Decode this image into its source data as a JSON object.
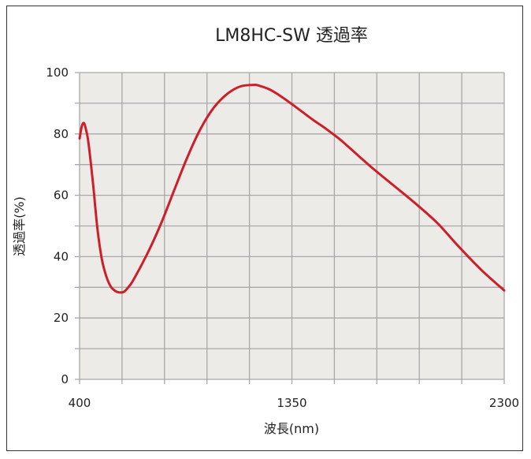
{
  "chart_data": {
    "type": "line",
    "title": "LM8HC-SW 透過率",
    "xlabel": "波長(nm)",
    "ylabel": "透過率(%)",
    "xlim": [
      400,
      2300
    ],
    "ylim": [
      0,
      100
    ],
    "x_tick_labels": [
      {
        "value": 400,
        "label": "400"
      },
      {
        "value": 1350,
        "label": "1350"
      },
      {
        "value": 2300,
        "label": "2300"
      }
    ],
    "x_grid_count": 10,
    "y_ticks": [
      0,
      20,
      40,
      60,
      80,
      100
    ],
    "y_grid_step": 10,
    "grid": true,
    "colors": {
      "line": "#cc1f2a",
      "plot_bg": "#ecebe7",
      "grid": "#a8a8a8"
    },
    "series": [
      {
        "x": [
          400,
          410,
          420,
          430,
          440,
          460,
          480,
          500,
          520,
          540,
          560,
          580,
          600,
          620,
          640,
          700,
          760,
          820,
          880,
          940,
          1000,
          1060,
          1120,
          1180,
          1200,
          1250,
          1300,
          1350,
          1400,
          1450,
          1500,
          1560,
          1600,
          1700,
          1800,
          1900,
          2000,
          2100,
          2200,
          2300
        ],
        "y": [
          78.5,
          82.5,
          83.5,
          81,
          77,
          64,
          49,
          39,
          33.5,
          30.2,
          28.8,
          28.3,
          28.6,
          30.2,
          32.3,
          40.5,
          50,
          61,
          72,
          81.5,
          88.5,
          93,
          95.5,
          96,
          95.8,
          94.5,
          92.3,
          89.7,
          87,
          84.3,
          81.8,
          78.5,
          76,
          69.5,
          63.5,
          57.5,
          51,
          43,
          35.5,
          29
        ]
      }
    ]
  }
}
